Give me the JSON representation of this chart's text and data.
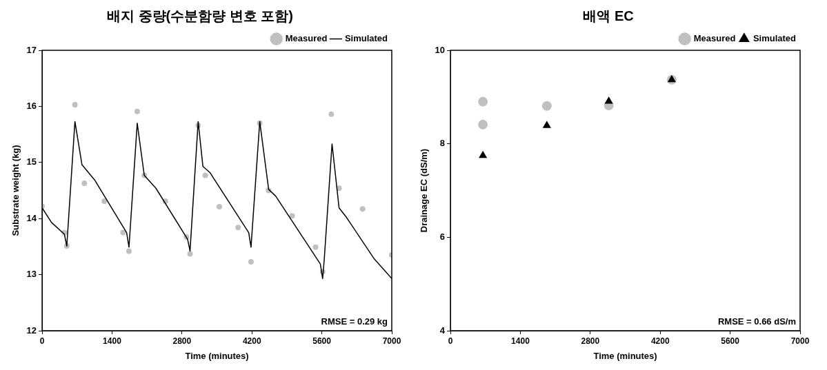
{
  "chart_data": [
    {
      "type": "line",
      "title": "배지 중량(수분함량 변호 포함)",
      "xlabel": "Time (minutes)",
      "ylabel": "Substrate weight (kg)",
      "xlim": [
        0,
        7000
      ],
      "xticks": [
        0,
        1400,
        2800,
        4200,
        5600,
        7000
      ],
      "ylim": [
        12,
        17
      ],
      "yticks": [
        12,
        13,
        14,
        15,
        16,
        17
      ],
      "grid": false,
      "legend": "top right",
      "annotations": [
        "RMSE = 0.29 kg"
      ],
      "series": [
        {
          "name": "Measured",
          "type": "scatter",
          "marker": "circle",
          "color": "#c0c0c0",
          "x": [
            0,
            446,
            494,
            657,
            846,
            1245,
            1621,
            1739,
            1904,
            2045,
            2468,
            2890,
            2961,
            3124,
            3266,
            3548,
            3924,
            4182,
            4357,
            4535,
            5006,
            5475,
            5616,
            5790,
            5945,
            6416,
            7000
          ],
          "values": [
            14.22,
            13.75,
            13.51,
            16.03,
            14.63,
            14.31,
            13.75,
            13.42,
            15.91,
            14.77,
            14.31,
            13.67,
            13.37,
            15.66,
            14.77,
            14.21,
            13.84,
            13.23,
            15.7,
            14.5,
            14.05,
            13.49,
            13.05,
            15.86,
            14.54,
            14.17,
            13.35
          ]
        },
        {
          "name": "Simulated",
          "marker": "none",
          "line_style": "solid",
          "color": "#000000",
          "x": [
            0,
            188,
            446,
            494,
            657,
            798,
            1058,
            1692,
            1739,
            1904,
            2045,
            2279,
            2913,
            2961,
            3124,
            3219,
            3360,
            4136,
            4182,
            4357,
            4535,
            4676,
            5570,
            5616,
            5649,
            5804,
            5945,
            6086,
            6650,
            7000
          ],
          "values": [
            14.19,
            13.93,
            13.72,
            13.51,
            15.73,
            14.96,
            14.68,
            13.75,
            13.49,
            15.7,
            14.77,
            14.54,
            13.63,
            13.42,
            15.73,
            14.93,
            14.82,
            13.75,
            13.49,
            15.73,
            14.52,
            14.4,
            13.19,
            12.93,
            13.28,
            15.33,
            14.19,
            14.03,
            13.28,
            12.93
          ]
        }
      ]
    },
    {
      "type": "scatter",
      "title": "배액 EC",
      "xlabel": "Time (minutes)",
      "ylabel": "Drainage EC (dS/m)",
      "xlim": [
        0,
        7000
      ],
      "xticks": [
        0,
        1400,
        2800,
        4200,
        5600,
        7000
      ],
      "ylim": [
        4,
        10
      ],
      "yticks": [
        4,
        6,
        8,
        10
      ],
      "grid": false,
      "legend": "top right",
      "annotations": [
        "RMSE = 0.66 dS/m"
      ],
      "series": [
        {
          "name": "Measured",
          "marker": "circle",
          "color": "#c0c0c0",
          "x": [
            650,
            650,
            1930,
            3170,
            4430
          ],
          "values": [
            8.9,
            8.41,
            8.81,
            8.82,
            9.37
          ]
        },
        {
          "name": "Simulated",
          "marker": "triangle",
          "color": "#000000",
          "x": [
            650,
            1930,
            3170,
            4430
          ],
          "values": [
            7.75,
            8.39,
            8.91,
            9.37
          ]
        }
      ]
    }
  ]
}
